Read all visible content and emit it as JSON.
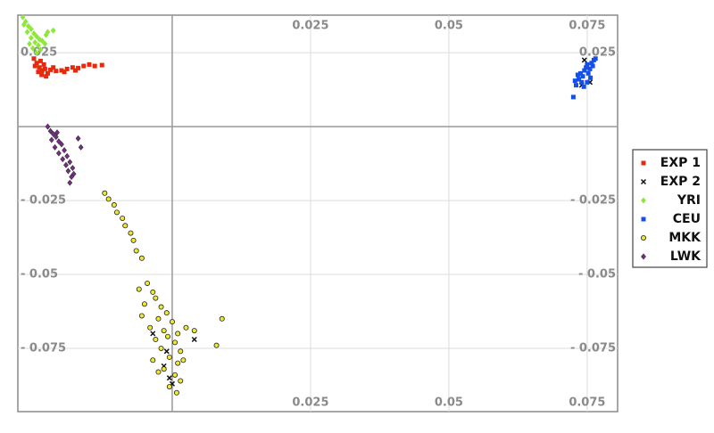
{
  "chart_data": {
    "type": "scatter",
    "xlim": [
      -0.0279,
      0.0805
    ],
    "ylim": [
      -0.0964,
      0.0377
    ],
    "xticks": [
      0.025,
      0.05,
      0.075
    ],
    "yticks": [
      {
        "value": -0.075,
        "label": "- 0.075"
      },
      {
        "value": -0.05,
        "label": "- 0.05"
      },
      {
        "value": -0.025,
        "label": "- 0.025"
      },
      0.025
    ],
    "grid": true,
    "legend": "right",
    "series": [
      {
        "name": "EXP 1",
        "color": "#e8280a",
        "marker": "square",
        "x": [
          -0.025,
          -0.0245,
          -0.024,
          -0.0235,
          -0.0248,
          -0.0238,
          -0.023,
          -0.0225,
          -0.0242,
          -0.0232,
          -0.022,
          -0.021,
          -0.02,
          -0.019,
          -0.018,
          -0.017,
          -0.016,
          -0.015,
          -0.014,
          -0.0127,
          -0.0195,
          -0.0215,
          -0.0228,
          -0.0236,
          -0.0175
        ],
        "values": [
          0.023,
          0.0215,
          0.02,
          0.019,
          0.0205,
          0.0222,
          0.0195,
          0.018,
          0.0185,
          0.021,
          0.0192,
          0.0188,
          0.019,
          0.0195,
          0.02,
          0.0198,
          0.0205,
          0.021,
          0.0205,
          0.0208,
          0.0185,
          0.02,
          0.017,
          0.0175,
          0.019
        ]
      },
      {
        "name": "EXP 2",
        "color": "#111111",
        "marker": "x",
        "x": [
          0.074,
          0.0745,
          0.0755,
          -0.0035,
          -0.001,
          0.004,
          -0.0005,
          0.0,
          -0.0015
        ],
        "values": [
          0.014,
          0.0225,
          0.015,
          -0.07,
          -0.076,
          -0.072,
          -0.085,
          -0.087,
          -0.081
        ]
      },
      {
        "name": "YRI",
        "color": "#8ee83a",
        "marker": "diamond",
        "x": [
          -0.027,
          -0.0265,
          -0.026,
          -0.0255,
          -0.0262,
          -0.025,
          -0.0245,
          -0.0255,
          -0.024,
          -0.0248,
          -0.0235,
          -0.0242,
          -0.023,
          -0.0252,
          -0.0238,
          -0.0228,
          -0.0268,
          -0.0258,
          -0.0225,
          -0.0215,
          -0.0245
        ],
        "values": [
          0.037,
          0.0355,
          0.034,
          0.033,
          0.032,
          0.0315,
          0.0305,
          0.03,
          0.0295,
          0.0285,
          0.029,
          0.0275,
          0.028,
          0.0265,
          0.026,
          0.031,
          0.0345,
          0.028,
          0.032,
          0.0325,
          0.025
        ]
      },
      {
        "name": "CEU",
        "color": "#1450e8",
        "marker": "square",
        "x": [
          0.0725,
          0.073,
          0.0735,
          0.0738,
          0.0742,
          0.0745,
          0.0748,
          0.075,
          0.0752,
          0.0755,
          0.0758,
          0.076,
          0.0762,
          0.074,
          0.0733,
          0.0744,
          0.0756,
          0.0765,
          0.0728,
          0.075
        ],
        "values": [
          0.01,
          0.014,
          0.016,
          0.018,
          0.017,
          0.019,
          0.02,
          0.021,
          0.018,
          0.0195,
          0.0215,
          0.0205,
          0.0225,
          0.015,
          0.0175,
          0.0135,
          0.0165,
          0.023,
          0.0155,
          0.015
        ]
      },
      {
        "name": "MKK",
        "color": "#f0e830",
        "marker": "circle",
        "x": [
          -0.0122,
          -0.0115,
          -0.0105,
          -0.01,
          -0.009,
          -0.0085,
          -0.0075,
          -0.007,
          -0.0065,
          -0.0055,
          -0.006,
          -0.0045,
          -0.0035,
          -0.003,
          -0.005,
          -0.002,
          -0.0055,
          -0.0025,
          -0.001,
          0.0,
          -0.004,
          -0.0015,
          0.001,
          -0.003,
          0.0005,
          -0.002,
          0.0015,
          -0.0005,
          -0.0035,
          0.001,
          -0.0015,
          0.0005,
          -0.0025,
          0.0015,
          -0.0005,
          0.0008,
          0.0025,
          0.009,
          0.008,
          0.004,
          -0.0008,
          0.002
        ],
        "values": [
          -0.0225,
          -0.0245,
          -0.0265,
          -0.029,
          -0.031,
          -0.0335,
          -0.036,
          -0.0385,
          -0.042,
          -0.0445,
          -0.055,
          -0.053,
          -0.056,
          -0.058,
          -0.06,
          -0.061,
          -0.064,
          -0.065,
          -0.063,
          -0.066,
          -0.068,
          -0.069,
          -0.07,
          -0.072,
          -0.073,
          -0.075,
          -0.076,
          -0.078,
          -0.079,
          -0.08,
          -0.082,
          -0.084,
          -0.083,
          -0.086,
          -0.088,
          -0.09,
          -0.068,
          -0.065,
          -0.074,
          -0.069,
          -0.071,
          -0.079
        ]
      },
      {
        "name": "LWK",
        "color": "#7a2a8a",
        "marker": "diamond",
        "x": [
          -0.0225,
          -0.022,
          -0.0215,
          -0.021,
          -0.0218,
          -0.0205,
          -0.02,
          -0.0212,
          -0.0195,
          -0.0205,
          -0.019,
          -0.0198,
          -0.0185,
          -0.0192,
          -0.018,
          -0.0188,
          -0.0182,
          -0.0185,
          -0.0178,
          -0.0165,
          -0.017,
          -0.0208
        ],
        "values": [
          0.0,
          -0.0015,
          -0.0025,
          -0.0035,
          -0.0045,
          -0.005,
          -0.006,
          -0.007,
          -0.008,
          -0.009,
          -0.01,
          -0.011,
          -0.012,
          -0.013,
          -0.014,
          -0.015,
          -0.017,
          -0.019,
          -0.016,
          -0.007,
          -0.004,
          -0.002
        ]
      }
    ]
  }
}
